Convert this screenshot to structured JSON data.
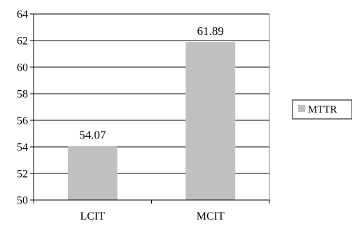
{
  "chart_data": {
    "type": "bar",
    "categories": [
      "LCIT",
      "MCIT"
    ],
    "series": [
      {
        "name": "MTTR",
        "values": [
          54.07,
          61.89
        ],
        "color": "#c0c0c0"
      }
    ],
    "data_labels": [
      "54.07",
      "61.89"
    ],
    "ylim": [
      50,
      64
    ],
    "y_ticks": [
      50,
      52,
      54,
      56,
      58,
      60,
      62,
      64
    ],
    "grid": true,
    "legend_position": "right",
    "title": "",
    "xlabel": "",
    "ylabel": ""
  }
}
